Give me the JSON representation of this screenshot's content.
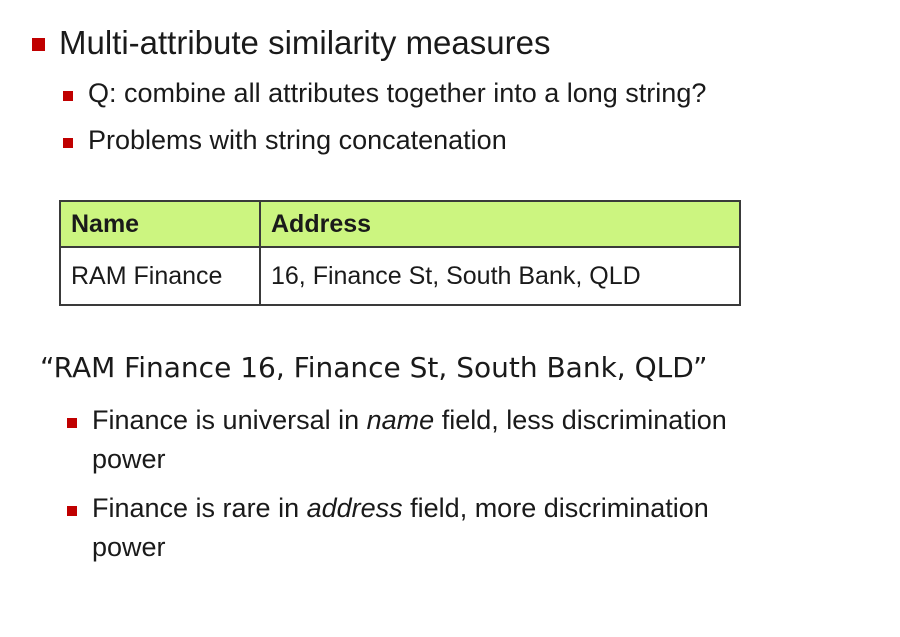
{
  "slide": {
    "title": "Multi-attribute similarity measures",
    "sub_bullets": [
      "Q: combine all attributes together into a long string?",
      "Problems with string concatenation"
    ],
    "table": {
      "headers": [
        "Name",
        "Address"
      ],
      "rows": [
        [
          "RAM Finance",
          "16, Finance St, South Bank, QLD"
        ]
      ]
    },
    "quote": "“RAM Finance 16, Finance St, South Bank, QLD”",
    "points": [
      {
        "before": "Finance is universal in ",
        "emphasis": "name",
        "after": " field, less discrimination",
        "continuation": "power"
      },
      {
        "before": "Finance is rare in ",
        "emphasis": "address",
        "after": " field, more discrimination",
        "continuation": "power"
      }
    ],
    "colors": {
      "bullet": "#c00000",
      "header_fill": "#ccf580",
      "table_border": "#3a3a3a"
    }
  }
}
